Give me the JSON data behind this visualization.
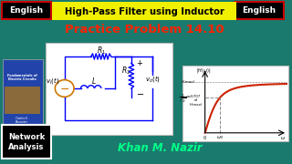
{
  "bg_color": "#1a7a6e",
  "title1": "High-Pass Filter using Inductor",
  "title1_bg": "#f0f000",
  "title1_color": "#000000",
  "title2": "Practice Problem 14.10",
  "title2_color": "#ff2200",
  "english_text": "English",
  "english_text_color": "#ffffff",
  "english_bg": "#000000",
  "english_border": "#cc0000",
  "network_label": "Network\nAnalysis",
  "network_bg": "#000000",
  "network_border": "#ffffff",
  "network_color": "#ffffff",
  "khan_text": "Khan M. Nazir",
  "khan_color": "#00ff88",
  "book_bg": "#2244aa",
  "book_text_color": "#ffffff",
  "circuit_bg": "#ffffff",
  "graph_bg": "#ffffff",
  "graph_curve_color": "#cc2200",
  "graph_dash_color": "#888888"
}
